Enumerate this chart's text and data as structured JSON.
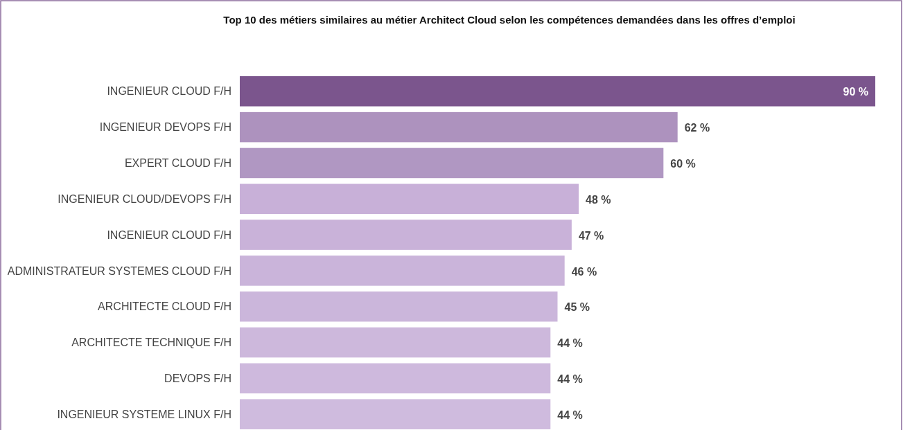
{
  "chart_data": {
    "type": "bar",
    "title": "Top 10 des métiers similaires au métier Architect Cloud selon les compétences demandées dans les offres d’emploi",
    "categories": [
      "INGENIEUR CLOUD F/H",
      "INGENIEUR DEVOPS F/H",
      "EXPERT CLOUD F/H",
      "INGENIEUR CLOUD/DEVOPS F/H",
      "INGENIEUR CLOUD F/H",
      "ADMINISTRATEUR SYSTEMES CLOUD F/H",
      "ARCHITECTE CLOUD F/H",
      "ARCHITECTE TECHNIQUE F/H",
      "DEVOPS F/H",
      "INGENIEUR SYSTEME LINUX F/H"
    ],
    "values": [
      90,
      62,
      60,
      48,
      47,
      46,
      45,
      44,
      44,
      44
    ],
    "value_labels": [
      "90 %",
      "62 %",
      "60 %",
      "48 %",
      "47 %",
      "46 %",
      "45 %",
      "44 %",
      "44 %",
      "44 %"
    ],
    "colors": [
      "#7b558d",
      "#ad92be",
      "#b097c2",
      "#c8b0d8",
      "#c9b2d9",
      "#cab4da",
      "#cbb6db",
      "#cdb8dc",
      "#ceb9dd",
      "#cfbbde"
    ],
    "orientation": "horizontal"
  }
}
